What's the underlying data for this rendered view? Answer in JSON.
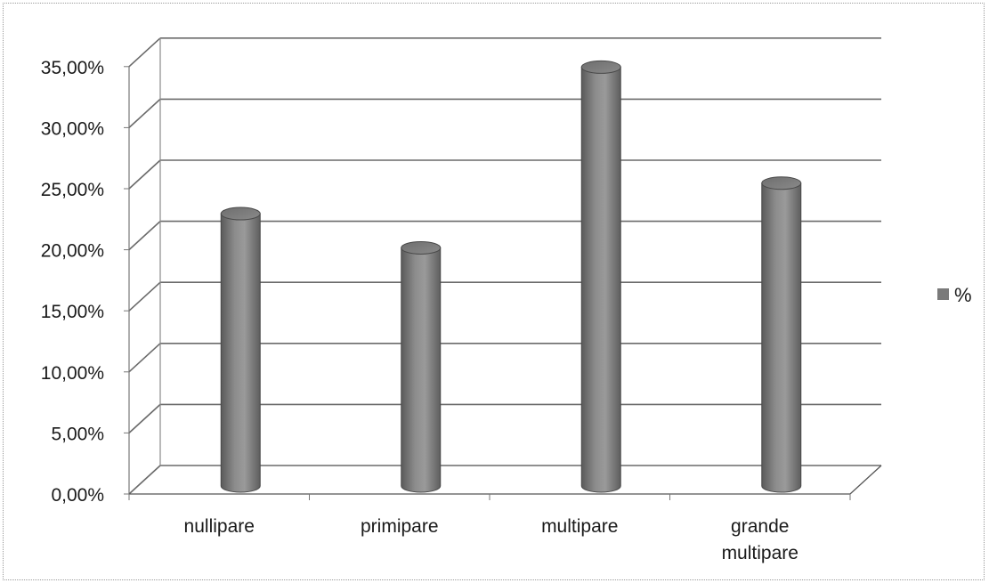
{
  "chart_data": {
    "type": "bar",
    "style": "3d-cylinder",
    "categories": [
      "nullipare",
      "primipare",
      "multipare",
      "grande multipare"
    ],
    "category_lines": [
      [
        "nullipare"
      ],
      [
        "primipare"
      ],
      [
        "multipare"
      ],
      [
        "grande",
        "multipare"
      ]
    ],
    "series": [
      {
        "name": "%",
        "values": [
          22.3,
          19.5,
          34.3,
          24.8
        ]
      }
    ],
    "y_ticks": [
      0,
      5,
      10,
      15,
      20,
      25,
      30,
      35
    ],
    "y_tick_labels": [
      "0,00%",
      "5,00%",
      "10,00%",
      "15,00%",
      "20,00%",
      "25,00%",
      "30,00%",
      "35,00%"
    ],
    "ylim": [
      0,
      35
    ],
    "grid": true,
    "legend_position": "right",
    "bar_color": "#7a7a7a"
  }
}
